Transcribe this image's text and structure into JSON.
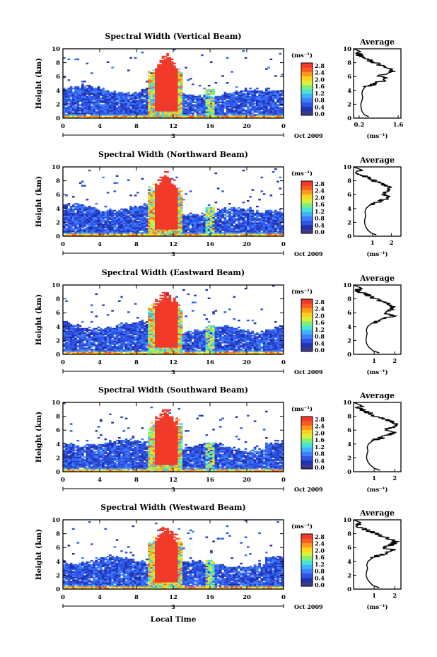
{
  "chart_data": {
    "type": "heatmap",
    "x_axis_label": "Local Time",
    "y_axis_label": "Height (km)",
    "x_ticks": [
      "0",
      "4",
      "8",
      "12",
      "16",
      "20",
      "0"
    ],
    "y_ticks": [
      "0",
      "2",
      "4",
      "6",
      "8",
      "10"
    ],
    "xlim": [
      0,
      24
    ],
    "ylim": [
      0,
      10
    ],
    "date_marker": "3",
    "date_label": "Oct 2009",
    "colorbar": {
      "unit": "(ms⁻¹)",
      "ticks": [
        "0.0",
        "0.4",
        "0.8",
        "1.2",
        "1.6",
        "2.0",
        "2.4",
        "2.8"
      ],
      "range": [
        0,
        2.8
      ],
      "colors": [
        "#3a3a8c",
        "#2233b0",
        "#2f55e6",
        "#3f7fff",
        "#3fb3ff",
        "#49e3d6",
        "#7ef07a",
        "#d7f03c",
        "#ffd31c",
        "#ff9a1a",
        "#ff5a22",
        "#f23a2a"
      ]
    },
    "panels": [
      {
        "title": "Spectral Width (Vertical Beam)",
        "avg_title": "Average",
        "avg_xlabel": "(ms⁻¹)",
        "avg_xticks": [
          "0.2",
          "1.6"
        ],
        "avg_xlim": [
          0,
          1.7
        ],
        "avg_profile": {
          "height_km": [
            0.2,
            0.5,
            1.0,
            1.5,
            2.0,
            2.5,
            3.0,
            3.5,
            4.0,
            4.5,
            4.8,
            5.2,
            5.6,
            6.0,
            6.4,
            6.8,
            7.2,
            7.6,
            8.0,
            8.4,
            8.8,
            9.2,
            9.6,
            10.0
          ],
          "width_ms": [
            0.55,
            0.38,
            0.3,
            0.27,
            0.26,
            0.3,
            0.33,
            0.3,
            0.32,
            0.42,
            0.65,
            0.9,
            1.2,
            0.95,
            1.1,
            1.4,
            1.3,
            1.0,
            0.75,
            0.55,
            0.35,
            0.15,
            0.25,
            0.0
          ]
        }
      },
      {
        "title": "Spectral Width (Northward Beam)",
        "avg_title": "Average",
        "avg_xlabel": "(ms⁻¹)",
        "avg_xticks": [
          "1",
          "2"
        ],
        "avg_xlim": [
          0,
          2.5
        ],
        "avg_profile": {
          "height_km": [
            0.2,
            0.5,
            1.0,
            1.5,
            2.0,
            2.5,
            3.0,
            3.5,
            4.0,
            4.5,
            4.8,
            5.2,
            5.6,
            6.0,
            6.4,
            6.8,
            7.2,
            7.6,
            8.0,
            8.4,
            8.8,
            9.2,
            9.6,
            10.0
          ],
          "width_ms": [
            1.2,
            0.9,
            0.72,
            0.62,
            0.58,
            0.6,
            0.64,
            0.6,
            0.66,
            0.85,
            1.15,
            1.5,
            1.9,
            1.45,
            1.75,
            2.05,
            1.85,
            1.45,
            1.1,
            0.8,
            0.45,
            0.2,
            0.4,
            0.0
          ]
        }
      },
      {
        "title": "Spectral Width (Eastward Beam)",
        "avg_title": "Average",
        "avg_xlabel": "(ms⁻¹)",
        "avg_xticks": [
          "1",
          "2"
        ],
        "avg_xlim": [
          0,
          2.3
        ],
        "avg_profile": {
          "height_km": [
            0.2,
            0.5,
            1.0,
            1.5,
            2.0,
            2.5,
            3.0,
            3.5,
            4.0,
            4.5,
            4.8,
            5.2,
            5.6,
            6.0,
            6.4,
            6.8,
            7.2,
            7.6,
            8.0,
            8.4,
            8.8,
            9.2,
            9.6,
            10.0
          ],
          "width_ms": [
            1.25,
            0.95,
            0.75,
            0.64,
            0.6,
            0.62,
            0.66,
            0.62,
            0.68,
            0.9,
            1.2,
            1.55,
            1.95,
            1.5,
            1.8,
            2.0,
            1.8,
            1.4,
            1.05,
            0.75,
            0.45,
            0.2,
            0.35,
            0.0
          ]
        }
      },
      {
        "title": "Spectral Width (Southward Beam)",
        "avg_title": "Average",
        "avg_xlabel": "(ms⁻¹)",
        "avg_xticks": [
          "1",
          "2"
        ],
        "avg_xlim": [
          0,
          2.3
        ],
        "avg_profile": {
          "height_km": [
            0.2,
            0.5,
            1.0,
            1.5,
            2.0,
            2.5,
            3.0,
            3.5,
            4.0,
            4.5,
            4.8,
            5.2,
            5.6,
            6.0,
            6.4,
            6.8,
            7.2,
            7.6,
            8.0,
            8.4,
            8.8,
            9.2,
            9.6,
            10.0
          ],
          "width_ms": [
            1.3,
            1.0,
            0.8,
            0.68,
            0.63,
            0.65,
            0.7,
            0.66,
            0.72,
            0.95,
            1.25,
            1.6,
            2.0,
            1.55,
            1.85,
            2.05,
            1.85,
            1.45,
            1.1,
            0.8,
            0.5,
            0.25,
            0.35,
            0.0
          ]
        }
      },
      {
        "title": "Spectral Width (Westward Beam)",
        "avg_title": "Average",
        "avg_xlabel": "(ms⁻¹)",
        "avg_xticks": [
          "1",
          "2"
        ],
        "avg_xlim": [
          0,
          2.3
        ],
        "avg_profile": {
          "height_km": [
            0.2,
            0.5,
            1.0,
            1.5,
            2.0,
            2.5,
            3.0,
            3.5,
            4.0,
            4.5,
            4.8,
            5.2,
            5.6,
            6.0,
            6.4,
            6.8,
            7.2,
            7.6,
            8.0,
            8.4,
            8.8,
            9.2,
            9.6,
            10.0
          ],
          "width_ms": [
            1.25,
            0.95,
            0.78,
            0.66,
            0.61,
            0.63,
            0.68,
            0.64,
            0.7,
            0.92,
            1.2,
            1.55,
            1.95,
            1.5,
            1.8,
            2.05,
            1.8,
            1.4,
            1.05,
            0.75,
            0.45,
            0.2,
            0.35,
            0.0
          ]
        }
      }
    ]
  }
}
